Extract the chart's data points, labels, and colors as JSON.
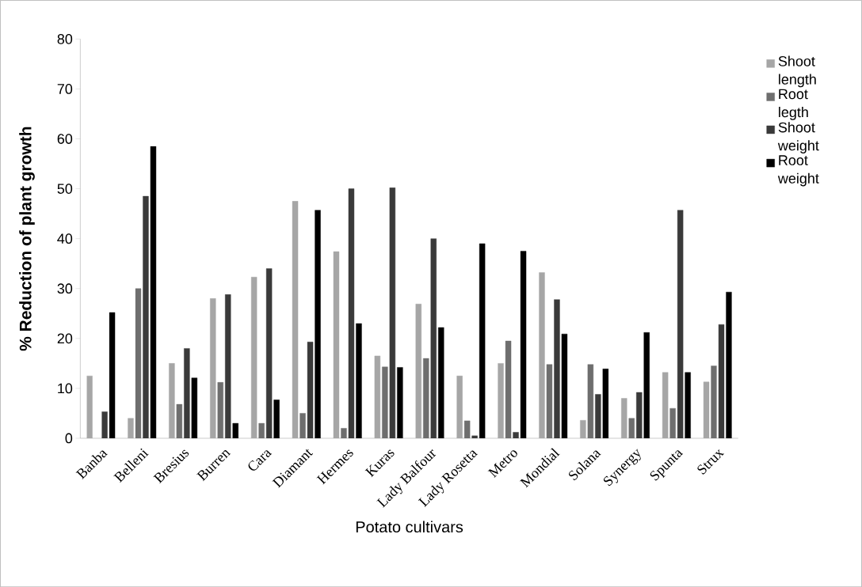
{
  "chart_data": {
    "type": "bar",
    "xlabel": "Potato cultivars",
    "ylabel": "% Reduction of plant growth",
    "categories": [
      "Banba",
      "Belleni",
      "Bresius",
      "Burren",
      "Cara",
      "Diamant",
      "Hermes",
      "Kuras",
      "Lady Balfour",
      "Lady Rosetta",
      "Metro",
      "Mondial",
      "Solana",
      "Synergy",
      "Spunta",
      "Strux"
    ],
    "series": [
      {
        "name": "Shoot length",
        "color": "#a6a6a6",
        "values": [
          12.5,
          4,
          15,
          28,
          32.3,
          47.5,
          37.4,
          16.5,
          26.9,
          12.5,
          15,
          33.2,
          3.6,
          8,
          13.2,
          11.3
        ]
      },
      {
        "name": "Root legth",
        "color": "#6e6e6e",
        "values": [
          null,
          30,
          6.8,
          11.2,
          3,
          5,
          2,
          14.3,
          16,
          3.5,
          19.5,
          14.8,
          14.8,
          4,
          6,
          14.5
        ]
      },
      {
        "name": "Shoot weight",
        "color": "#3a3a3a",
        "values": [
          5.3,
          48.5,
          18,
          28.8,
          34,
          19.3,
          50,
          50.2,
          40,
          0.5,
          1.2,
          27.8,
          8.8,
          9.2,
          45.7,
          22.8
        ]
      },
      {
        "name": "Root weight",
        "color": "#000000",
        "values": [
          25.2,
          58.5,
          12.1,
          3,
          7.7,
          45.7,
          23,
          14.2,
          22.2,
          39,
          37.5,
          20.9,
          13.9,
          21.2,
          13.2,
          29.3
        ]
      }
    ],
    "ylim": [
      0,
      80
    ],
    "yticks": [
      0,
      10,
      20,
      30,
      40,
      50,
      60,
      70,
      80
    ],
    "grid": false,
    "legend": "right"
  }
}
